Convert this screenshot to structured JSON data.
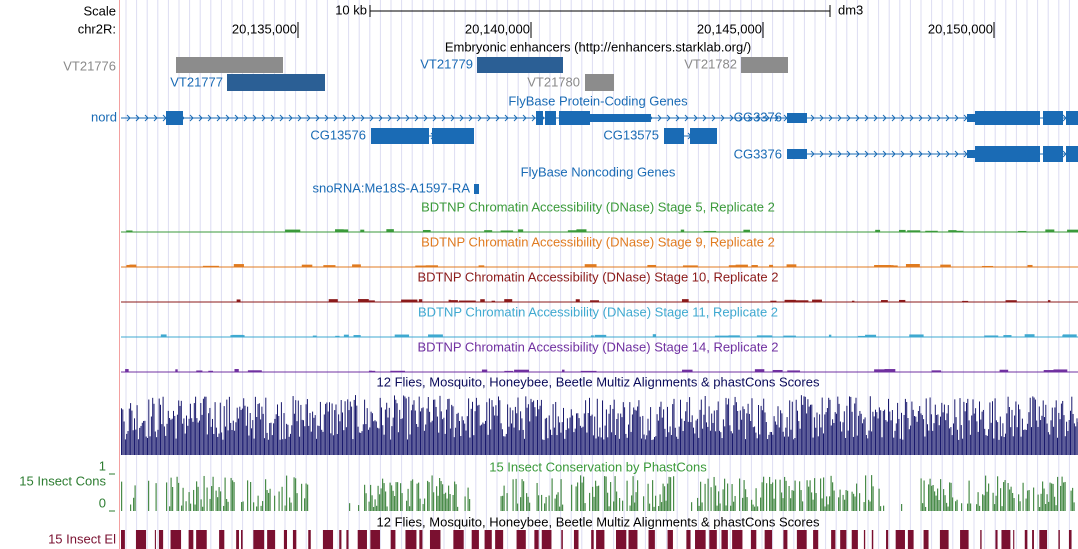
{
  "ruler": {
    "scale_label": "Scale",
    "scale_text": "10 kb",
    "assembly": "dm3",
    "chrom": "chr2R:",
    "ticks": [
      "20,135,000",
      "20,140,000",
      "20,145,000",
      "20,150,000"
    ]
  },
  "enhancers": {
    "title": "Embryonic enhancers (http://enhancers.starklab.org/)",
    "items": [
      "VT21776",
      "VT21777",
      "VT21779",
      "VT21780",
      "VT21782"
    ]
  },
  "genes": {
    "title": "FlyBase Protein-Coding Genes",
    "items": [
      "nord",
      "CG13576",
      "CG13575",
      "CG3376",
      "CG3376"
    ]
  },
  "noncoding": {
    "title": "FlyBase Noncoding Genes",
    "items": [
      "snoRNA:Me18S-A1597-RA"
    ]
  },
  "dnase": [
    "BDTNP Chromatin Accessibility (DNase) Stage 5, Replicate 2",
    "BDTNP Chromatin Accessibility (DNase) Stage 9, Replicate 2",
    "BDTNP Chromatin Accessibility (DNase) Stage 10, Replicate 2",
    "BDTNP Chromatin Accessibility (DNase) Stage 11, Replicate 2",
    "BDTNP Chromatin Accessibility (DNase) Stage 14, Replicate 2"
  ],
  "multiz": {
    "title": "12 Flies, Mosquito, Honeybee, Beetle Multiz Alignments & phastCons Scores"
  },
  "phastcons": {
    "label": "15 Insect Cons",
    "title": "15 Insect Conservation by PhastCons",
    "top": "1",
    "bottom": "0"
  },
  "elements": {
    "label": "15 Insect El",
    "title": "12 Flies, Mosquito, Honeybee, Beetle Multiz Alignments & phastCons Scores"
  }
}
